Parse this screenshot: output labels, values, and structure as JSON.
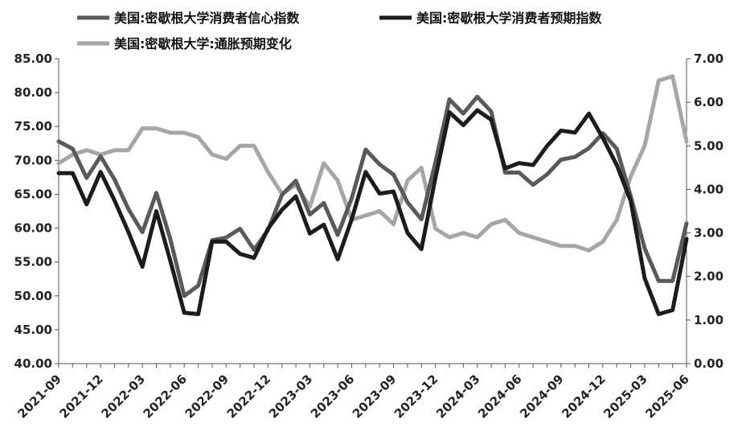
{
  "chart_data": {
    "type": "line",
    "x_tick_labels": [
      "2021-09",
      "2021-12",
      "2022-03",
      "2022-06",
      "2022-09",
      "2022-12",
      "2023-03",
      "2023-06",
      "2023-09",
      "2023-12",
      "2024-03",
      "2024-06",
      "2024-09",
      "2024-12",
      "2025-03",
      "2025-06"
    ],
    "x": [
      "2021-09",
      "2021-10",
      "2021-11",
      "2021-12",
      "2022-01",
      "2022-02",
      "2022-03",
      "2022-04",
      "2022-05",
      "2022-06",
      "2022-07",
      "2022-08",
      "2022-09",
      "2022-10",
      "2022-11",
      "2022-12",
      "2023-01",
      "2023-02",
      "2023-03",
      "2023-04",
      "2023-05",
      "2023-06",
      "2023-07",
      "2023-08",
      "2023-09",
      "2023-10",
      "2023-11",
      "2023-12",
      "2024-01",
      "2024-02",
      "2024-03",
      "2024-04",
      "2024-05",
      "2024-06",
      "2024-07",
      "2024-08",
      "2024-09",
      "2024-10",
      "2024-11",
      "2024-12",
      "2025-01",
      "2025-02",
      "2025-03",
      "2025-04",
      "2025-05",
      "2025-06"
    ],
    "y_left_ticks": [
      "40.00",
      "45.00",
      "50.00",
      "55.00",
      "60.00",
      "65.00",
      "70.00",
      "75.00",
      "80.00",
      "85.00"
    ],
    "y_right_ticks": [
      "0.00",
      "1.00",
      "2.00",
      "3.00",
      "4.00",
      "5.00",
      "6.00",
      "7.00"
    ],
    "ylim_left": [
      40,
      85
    ],
    "ylim_right": [
      0,
      7
    ],
    "legend_position": "top",
    "grid": false,
    "series": [
      {
        "name": "美国:密歇根大学消费者信心指数",
        "axis": "left",
        "color": "#5a5a5a",
        "values": [
          72.8,
          71.7,
          67.4,
          70.6,
          67.2,
          62.8,
          59.4,
          65.2,
          58.4,
          50.0,
          51.5,
          58.2,
          58.6,
          59.9,
          56.8,
          59.7,
          64.9,
          67.0,
          62.0,
          63.7,
          59.0,
          64.4,
          71.6,
          69.4,
          67.9,
          63.8,
          61.3,
          69.7,
          79.0,
          76.9,
          79.4,
          77.2,
          68.2,
          68.2,
          66.4,
          67.9,
          70.1,
          70.5,
          71.8,
          74.0,
          71.7,
          64.7,
          57.0,
          52.2,
          52.2,
          60.7
        ]
      },
      {
        "name": "美国:密歇根大学消费者预期指数",
        "axis": "left",
        "color": "#1c1c1c",
        "values": [
          68.1,
          68.1,
          63.5,
          68.3,
          64.1,
          59.4,
          54.3,
          62.5,
          55.2,
          47.5,
          47.3,
          58.0,
          58.0,
          56.2,
          55.6,
          59.9,
          62.7,
          64.7,
          59.2,
          60.5,
          55.4,
          61.3,
          68.3,
          65.1,
          65.4,
          59.3,
          56.9,
          67.4,
          77.1,
          75.2,
          77.4,
          76.0,
          68.8,
          69.6,
          69.3,
          72.1,
          74.4,
          74.1,
          76.9,
          73.3,
          69.3,
          64.0,
          52.6,
          47.3,
          47.9,
          58.4
        ]
      },
      {
        "name": "美国:密歇根大学:通胀预期变化",
        "axis": "right",
        "color": "#a6a6a6",
        "values": [
          4.6,
          4.8,
          4.9,
          4.8,
          4.9,
          4.9,
          5.4,
          5.4,
          5.3,
          5.3,
          5.2,
          4.8,
          4.7,
          5.0,
          5.0,
          4.4,
          3.9,
          4.1,
          3.6,
          4.6,
          4.2,
          3.3,
          3.4,
          3.5,
          3.2,
          4.2,
          4.5,
          3.1,
          2.9,
          3.0,
          2.9,
          3.2,
          3.3,
          3.0,
          2.9,
          2.8,
          2.7,
          2.7,
          2.6,
          2.8,
          3.3,
          4.3,
          5.0,
          6.5,
          6.6,
          5.1
        ]
      }
    ]
  }
}
